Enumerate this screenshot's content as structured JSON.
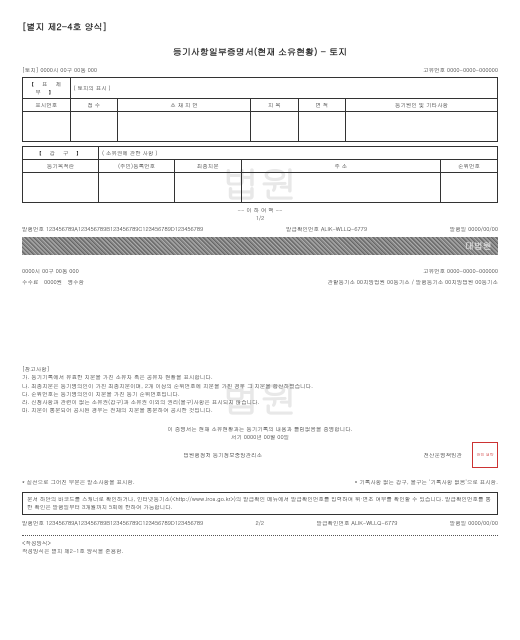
{
  "form_header": "[별지 제2-4호 양식]",
  "doc_title": "등기사항일부증명서(현재 소유현황) - 토지",
  "top": {
    "left": "[토지] 0000시 00구 00동 000",
    "right": "고유번호 0000-0000-000000"
  },
  "section1": {
    "bracket": "【 표 제 부 】",
    "desc": "( 토지의 표시 )",
    "headers": [
      "표시번호",
      "접 수",
      "소 재 지 번",
      "지 목",
      "면 적",
      "등기원인 및 기타사항"
    ]
  },
  "section2": {
    "bracket": "【 갑 구 】",
    "desc": "( 소유권에 관한 사항 )",
    "headers": [
      "등기목적란",
      "(주민)등록번호",
      "최종지분",
      "주 소",
      "순위번호"
    ]
  },
  "pagination": {
    "dash_label": "-- 이 하 여 백 --",
    "page": "1/2"
  },
  "issue1": {
    "issue_no_label": "발행번호",
    "issue_no": "123456789A123456789B123456789C123456789D123456789",
    "confirm_label": "발급확인번호",
    "confirm_no": "ALIK-WLLQ-6779",
    "date_label": "발행일",
    "date": "0000/00/00"
  },
  "noise_text": "대법원",
  "mid": {
    "left": "0000시 00구 00동 000",
    "right": "고유번호 0000-0000-000000",
    "fee_label": "수수료",
    "fee_amount": "0000원",
    "fee_status": "영수함",
    "office": "관할등기소   00지방법원 00등기소 / 발행등기소  00지방법원 00등기소"
  },
  "notes": {
    "title": "[참고사항]",
    "a": "가. 등기기록에서 유효한 지분을 가진 소유자 혹은 공유자 현황을 표시합니다.",
    "b": "나. 최종지분은 등기명의인이 가진 최종지분이며, 2개 이상의 순위번호에 지분을 가진 경우 그 지분을 합산하였습니다.",
    "c": "다. 순위번호는 등기명의인이 지분을 가진 등기 순위번호입니다.",
    "d": "라. 신청사항과 관련이 없는 소유권(갑구)과 소유권 이외의 권리(을구)사항은 표시되지 않습니다.",
    "e": "마. 지분이 통분되어 공시된 경우는 전체의 지분을 통분하여 공시한 것입니다."
  },
  "cert": {
    "line1": "이 증명서는 현재 소유현황과는 등기기록의 내용과 틀림없음을 증명합니다.",
    "line2": "서기 0000년 00월 00일",
    "line3": "법원행정처 등기정보중앙관리소",
    "right_label": "전산운영책임관",
    "stamp": "관인\n생략"
  },
  "dot_notes": {
    "left": "* 실선으로 그어진 부분은 말소사항을 표시함.",
    "right": "* 기록사항 없는 갑구, 을구는 '기록사항 없음'으로 표시함."
  },
  "footer_box": "문서 하단의 바코드를 스캐너로 확인하거나, 인터넷등기소(&lt;http://www.iros.go.kr&gt;)의 발급확인 메뉴에서 발급확인번호를 입력하여 위·변조 여부를 확인할 수 있습니다. 발급확인번호를 통한 확인은 발행일부터 3개월까지 5회에 한하여 가능합니다.",
  "issue2": {
    "issue_no": "123456789A123456789B123456789C123456789D123456789",
    "page": "2/2",
    "confirm_no": "ALIK-WLLQ-6779",
    "date": "0000/00/00"
  },
  "declare": {
    "title": "<작성방식>",
    "body": "작성방식은 별지 제2-1호 양식을 준용함."
  },
  "watermark": "법원"
}
